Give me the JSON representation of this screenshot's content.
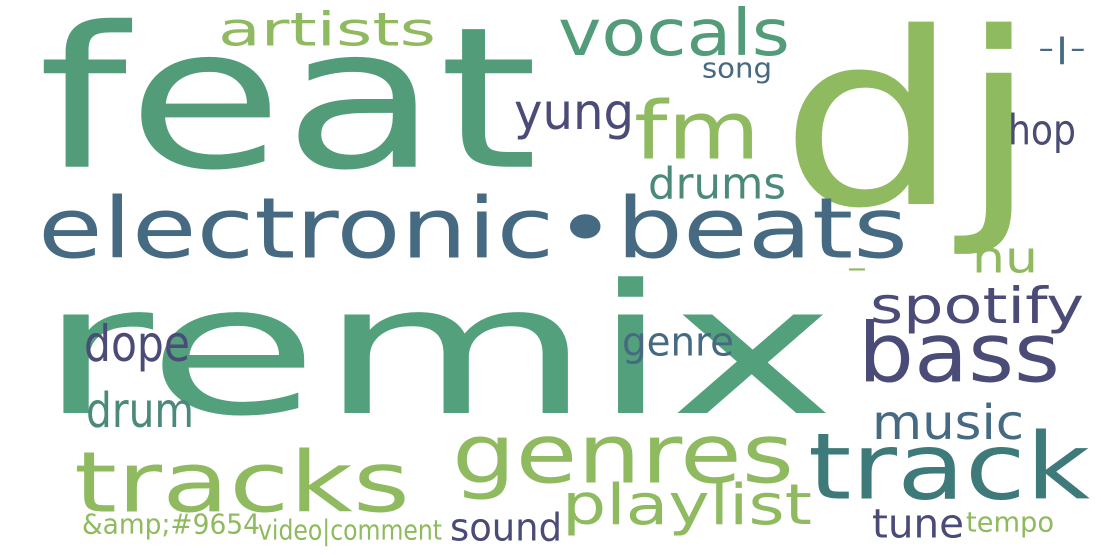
{
  "words": [
    {
      "text": "remix",
      "color": "#52a07c"
    },
    {
      "text": "feat",
      "color": "#529c7a"
    },
    {
      "text": "dj",
      "color": "#8fba5f"
    },
    {
      "text": "electronic•beats",
      "color": "#456a82"
    },
    {
      "text": "bass",
      "color": "#4b4b77"
    },
    {
      "text": "track",
      "color": "#3e7a79"
    },
    {
      "text": "genres",
      "color": "#8fba5f"
    },
    {
      "text": "tracks",
      "color": "#8fba5f"
    },
    {
      "text": "vocals",
      "color": "#529c7a"
    },
    {
      "text": "fm",
      "color": "#8fba5f"
    },
    {
      "text": "artists",
      "color": "#8fba5f"
    },
    {
      "text": "yung",
      "color": "#4b4b77"
    },
    {
      "text": "drums",
      "color": "#4b8a7a"
    },
    {
      "text": "spotify",
      "color": "#4b4b77"
    },
    {
      "text": "playlist",
      "color": "#8fba5f"
    },
    {
      "text": "music",
      "color": "#456a82"
    },
    {
      "text": "nu",
      "color": "#8fba5f"
    },
    {
      "text": "dope",
      "color": "#4b4b77"
    },
    {
      "text": "drum",
      "color": "#4b8a7a"
    },
    {
      "text": "genre",
      "color": "#456a82"
    },
    {
      "text": "hop",
      "color": "#4b4b77"
    },
    {
      "text": "sound",
      "color": "#4b4b77"
    },
    {
      "text": "tune",
      "color": "#4b4b77"
    },
    {
      "text": "tempo",
      "color": "#8fba5f"
    },
    {
      "text": "song",
      "color": "#456a82"
    },
    {
      "text": "-|-",
      "color": "#456a82"
    },
    {
      "text": "&amp;#9654",
      "color": "#8fba5f"
    },
    {
      "text": "video|comment",
      "color": "#8fba5f"
    },
    {
      "text": "-",
      "color": "#8fba5f"
    }
  ]
}
